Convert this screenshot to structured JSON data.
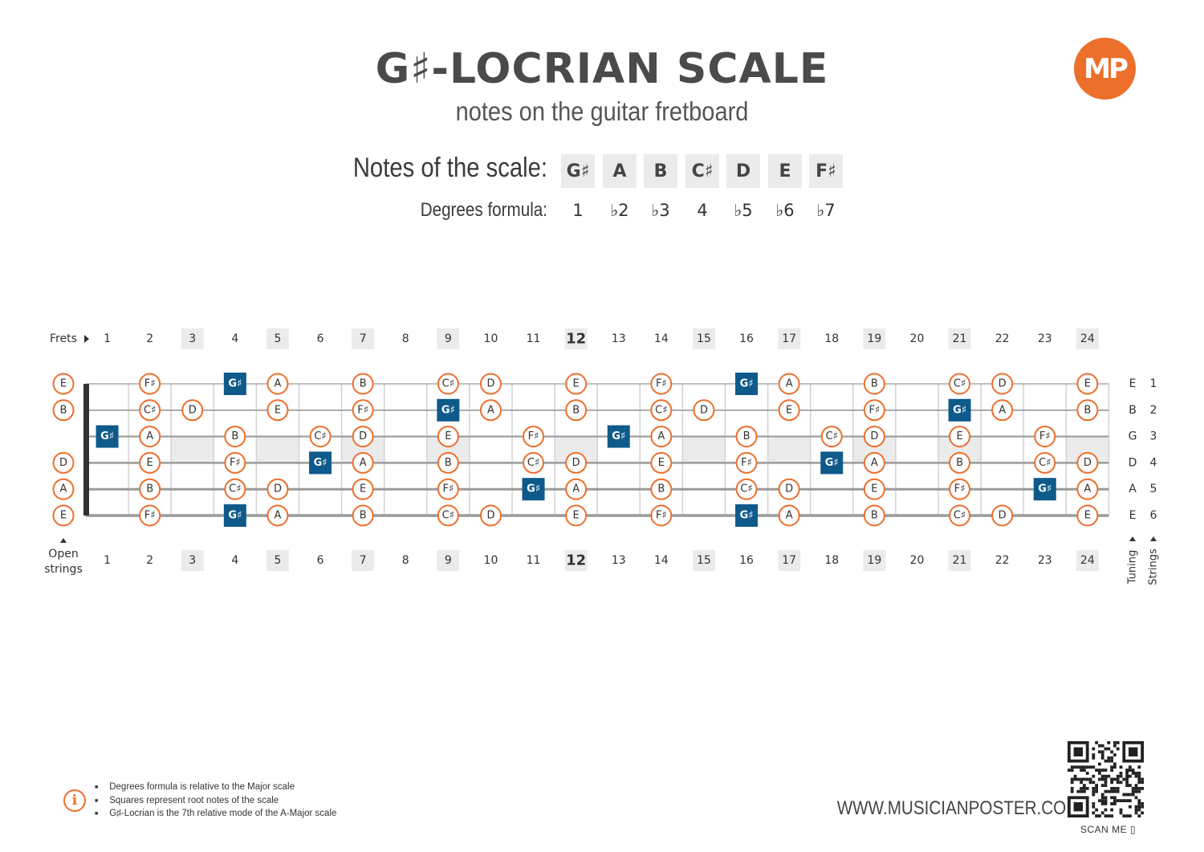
{
  "title": "G♯-LOCRIAN SCALE",
  "subtitle": "notes on the guitar fretboard",
  "logo_text": "MP",
  "notes_label": "Notes of the scale:",
  "degrees_label": "Degrees formula:",
  "scale_notes": [
    "G♯",
    "A",
    "B",
    "C♯",
    "D",
    "E",
    "F♯"
  ],
  "degrees": [
    "1",
    "♭2",
    "♭3",
    "4",
    "♭5",
    "♭6",
    "♭7"
  ],
  "frets_label": "Frets",
  "open_strings_label": [
    "Open",
    "strings"
  ],
  "tuning_label": "Tuning",
  "strings_label": "Strings",
  "fret_numbers": [
    "1",
    "2",
    "3",
    "4",
    "5",
    "6",
    "7",
    "8",
    "9",
    "10",
    "11",
    "12",
    "13",
    "14",
    "15",
    "16",
    "17",
    "18",
    "19",
    "20",
    "21",
    "22",
    "23",
    "24"
  ],
  "highlighted_frets": [
    "3",
    "5",
    "7",
    "9",
    "12",
    "15",
    "17",
    "19",
    "21",
    "24"
  ],
  "root_note": "G♯",
  "strings": [
    {
      "number": "1",
      "tuning": "E",
      "notes": [
        "E",
        "",
        "F♯",
        "",
        "G♯",
        "A",
        "",
        "B",
        "",
        "C♯",
        "D",
        "",
        "E",
        "",
        "F♯",
        "",
        "G♯",
        "A",
        "",
        "B",
        "",
        "C♯",
        "D",
        "",
        "E"
      ]
    },
    {
      "number": "2",
      "tuning": "B",
      "notes": [
        "B",
        "",
        "C♯",
        "D",
        "",
        "E",
        "",
        "F♯",
        "",
        "G♯",
        "A",
        "",
        "B",
        "",
        "C♯",
        "D",
        "",
        "E",
        "",
        "F♯",
        "",
        "G♯",
        "A",
        "",
        "B"
      ]
    },
    {
      "number": "3",
      "tuning": "G",
      "notes": [
        "",
        "G♯",
        "A",
        "",
        "B",
        "",
        "C♯",
        "D",
        "",
        "E",
        "",
        "F♯",
        "",
        "G♯",
        "A",
        "",
        "B",
        "",
        "C♯",
        "D",
        "",
        "E",
        "",
        "F♯",
        ""
      ]
    },
    {
      "number": "4",
      "tuning": "D",
      "notes": [
        "D",
        "",
        "E",
        "",
        "F♯",
        "",
        "G♯",
        "A",
        "",
        "B",
        "",
        "C♯",
        "D",
        "",
        "E",
        "",
        "F♯",
        "",
        "G♯",
        "A",
        "",
        "B",
        "",
        "C♯",
        "D"
      ]
    },
    {
      "number": "5",
      "tuning": "A",
      "notes": [
        "A",
        "",
        "B",
        "",
        "C♯",
        "D",
        "",
        "E",
        "",
        "F♯",
        "",
        "G♯",
        "A",
        "",
        "B",
        "",
        "C♯",
        "D",
        "",
        "E",
        "",
        "F♯",
        "",
        "G♯",
        "A"
      ]
    },
    {
      "number": "6",
      "tuning": "E",
      "notes": [
        "E",
        "",
        "F♯",
        "",
        "G♯",
        "A",
        "",
        "B",
        "",
        "C♯",
        "D",
        "",
        "E",
        "",
        "F♯",
        "",
        "G♯",
        "A",
        "",
        "B",
        "",
        "C♯",
        "D",
        "",
        "E"
      ]
    }
  ],
  "footer_notes": [
    "Degrees formula is relative to the Major scale",
    "Squares represent root notes of the scale",
    "G♯-Locrian is the 7th relative mode of the A-Major scale"
  ],
  "website": "WWW.MUSICIANPOSTER.COM",
  "scan_label": "SCAN ME",
  "colors": {
    "accent": "#ec6f2b",
    "root": "#0e5a8a",
    "highlight": "#ebebeb",
    "string": "#9a9a9a",
    "nut": "#333333"
  }
}
